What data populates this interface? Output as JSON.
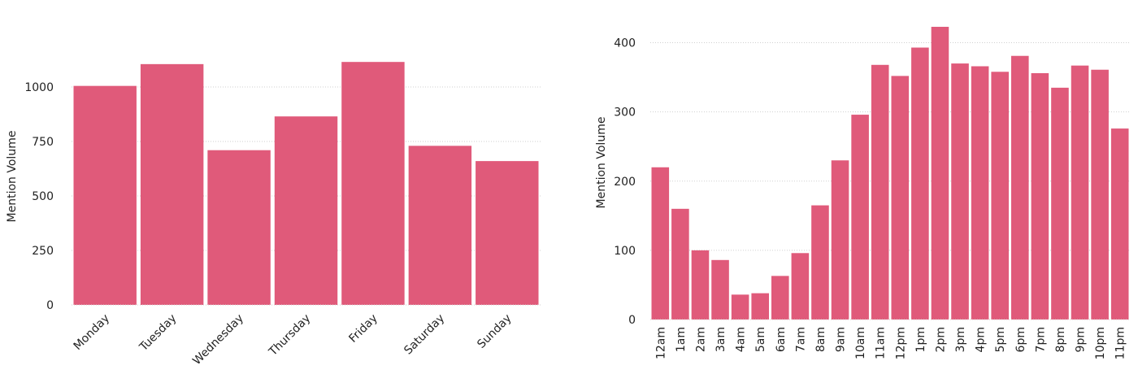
{
  "colors": {
    "bar": "#e05a7a",
    "grid": "#cfcfcf",
    "text": "#222222"
  },
  "chart_data": [
    {
      "type": "bar",
      "ylabel": "Mention Volume",
      "xlabel": "",
      "title": "",
      "grid": true,
      "ylim": [
        0,
        1250
      ],
      "yticks": [
        0,
        250,
        500,
        750,
        1000
      ],
      "ytick_labels": [
        "0",
        "250",
        "500",
        "750",
        "1000"
      ],
      "categories": [
        "Monday",
        "Tuesday",
        "Wednesday",
        "Thursday",
        "Friday",
        "Saturday",
        "Sunday"
      ],
      "values": [
        1005,
        1105,
        710,
        865,
        1115,
        730,
        660
      ]
    },
    {
      "type": "bar",
      "ylabel": "Mention Volume",
      "xlabel": "",
      "title": "",
      "grid": true,
      "ylim": [
        0,
        450
      ],
      "yticks": [
        0,
        100,
        200,
        300,
        400
      ],
      "ytick_labels": [
        "0",
        "100",
        "200",
        "300",
        "400"
      ],
      "categories": [
        "12am",
        "1am",
        "2am",
        "3am",
        "4am",
        "5am",
        "6am",
        "7am",
        "8am",
        "9am",
        "10am",
        "11am",
        "12pm",
        "1pm",
        "2pm",
        "3pm",
        "4pm",
        "5pm",
        "6pm",
        "7pm",
        "8pm",
        "9pm",
        "10pm",
        "11pm"
      ],
      "values": [
        220,
        160,
        100,
        86,
        36,
        38,
        63,
        96,
        165,
        230,
        296,
        368,
        352,
        393,
        423,
        370,
        366,
        358,
        381,
        356,
        335,
        367,
        361,
        276
      ]
    }
  ]
}
